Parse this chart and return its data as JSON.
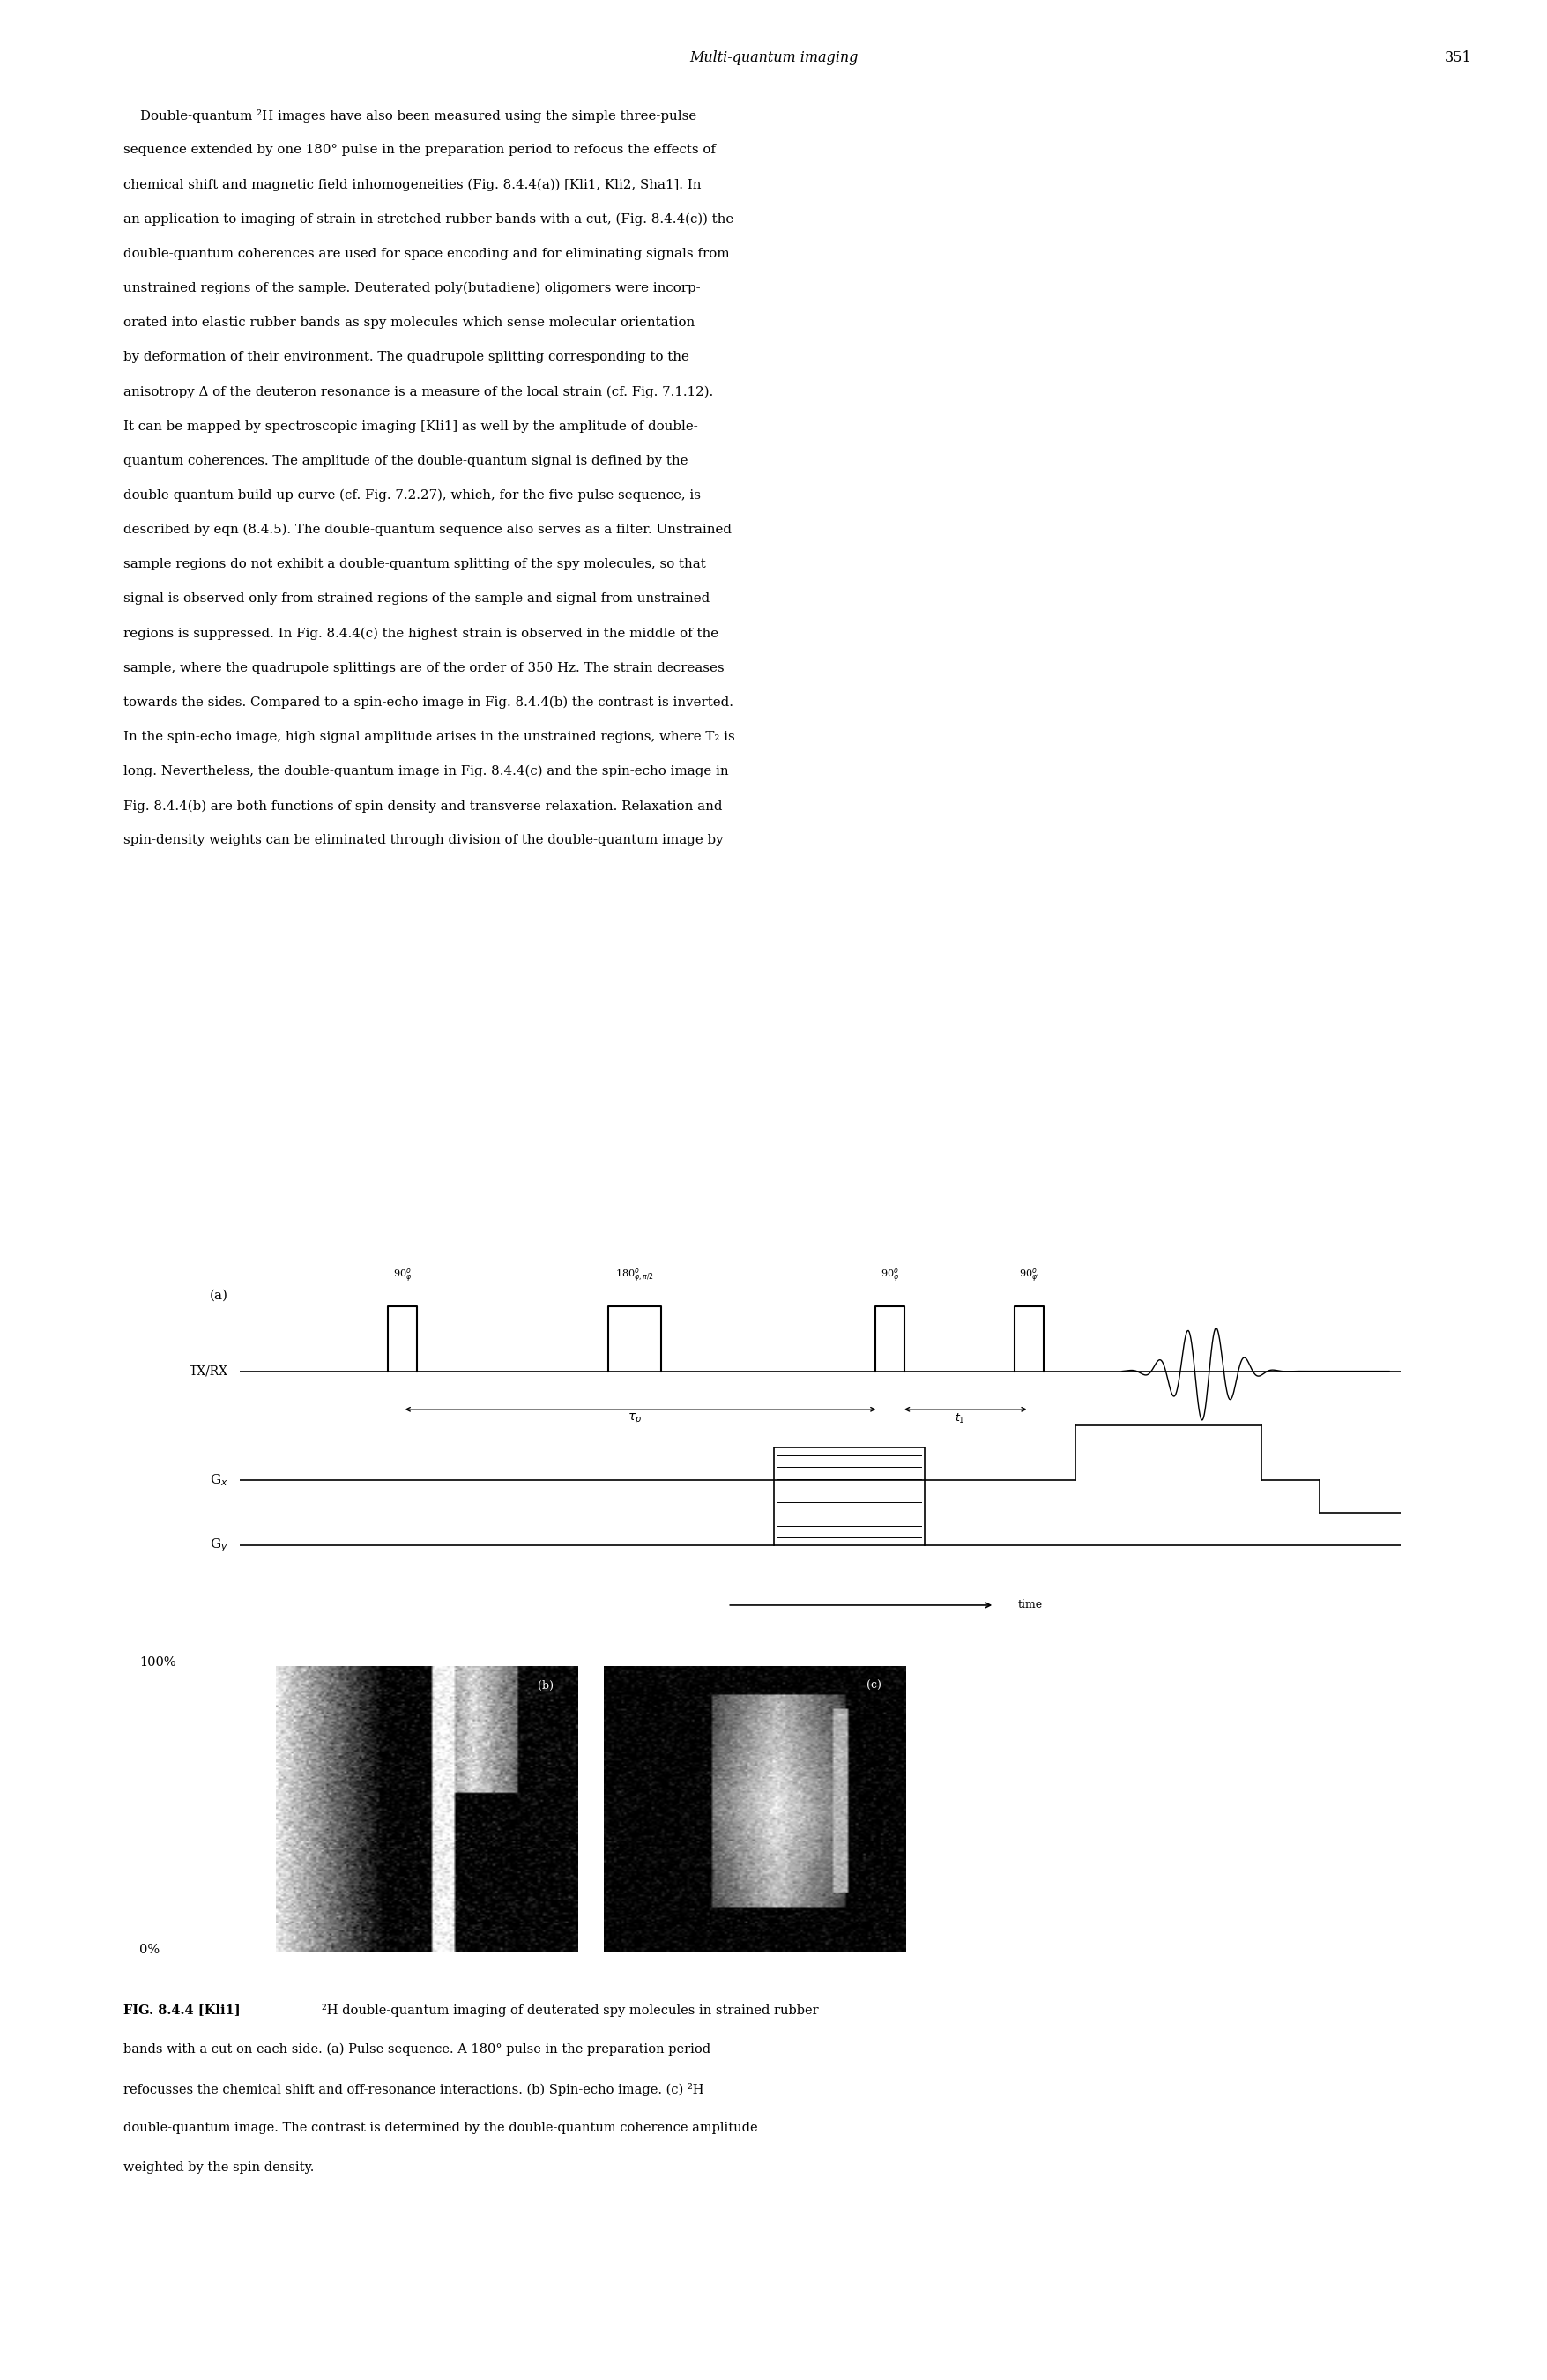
{
  "page_width": 17.56,
  "page_height": 27.0,
  "bg_color": "#ffffff",
  "header_italic": "Multi-quantum imaging",
  "header_page": "351",
  "body_lines": [
    "    Double-quantum ²H images have also been measured using the simple three-pulse",
    "sequence extended by one 180° pulse in the preparation period to refocus the effects of",
    "chemical shift and magnetic field inhomogeneities (Fig. 8.4.4(a)) [Kli1, Kli2, Sha1]. In",
    "an application to imaging of strain in stretched rubber bands with a cut, (Fig. 8.4.4(c)) the",
    "double-quantum coherences are used for space encoding and for eliminating signals from",
    "unstrained regions of the sample. Deuterated poly(butadiene) oligomers were incorp-",
    "orated into elastic rubber bands as spy molecules which sense molecular orientation",
    "by deformation of their environment. The quadrupole splitting corresponding to the",
    "anisotropy Δ of the deuteron resonance is a measure of the local strain (cf. Fig. 7.1.12).",
    "It can be mapped by spectroscopic imaging [Kli1] as well by the amplitude of double-",
    "quantum coherences. The amplitude of the double-quantum signal is defined by the",
    "double-quantum build-up curve (cf. Fig. 7.2.27), which, for the five-pulse sequence, is",
    "described by eqn (8.4.5). The double-quantum sequence also serves as a filter. Unstrained",
    "sample regions do not exhibit a double-quantum splitting of the spy molecules, so that",
    "signal is observed only from strained regions of the sample and signal from unstrained",
    "regions is suppressed. In Fig. 8.4.4(c) the highest strain is observed in the middle of the",
    "sample, where the quadrupole splittings are of the order of 350 Hz. The strain decreases",
    "towards the sides. Compared to a spin-echo image in Fig. 8.4.4(b) the contrast is inverted.",
    "In the spin-echo image, high signal amplitude arises in the unstrained regions, where T₂ is",
    "long. Nevertheless, the double-quantum image in Fig. 8.4.4(c) and the spin-echo image in",
    "Fig. 8.4.4(b) are both functions of spin density and transverse relaxation. Relaxation and",
    "spin-density weights can be eliminated through division of the double-quantum image by"
  ],
  "label_100": "100%",
  "label_0": "0%",
  "caption_bold": "FIG. 8.4.4 [Kli1]",
  "caption_lines": [
    "   ²H double-quantum imaging of deuterated spy molecules in strained rubber",
    "bands with a cut on each side. (a) Pulse sequence. A 180° pulse in the preparation period",
    "refocusses the chemical shift and off-resonance interactions. (b) Spin-echo image. (c) ²H",
    "double-quantum image. The contrast is determined by the double-quantum coherence amplitude",
    "weighted by the spin density."
  ]
}
